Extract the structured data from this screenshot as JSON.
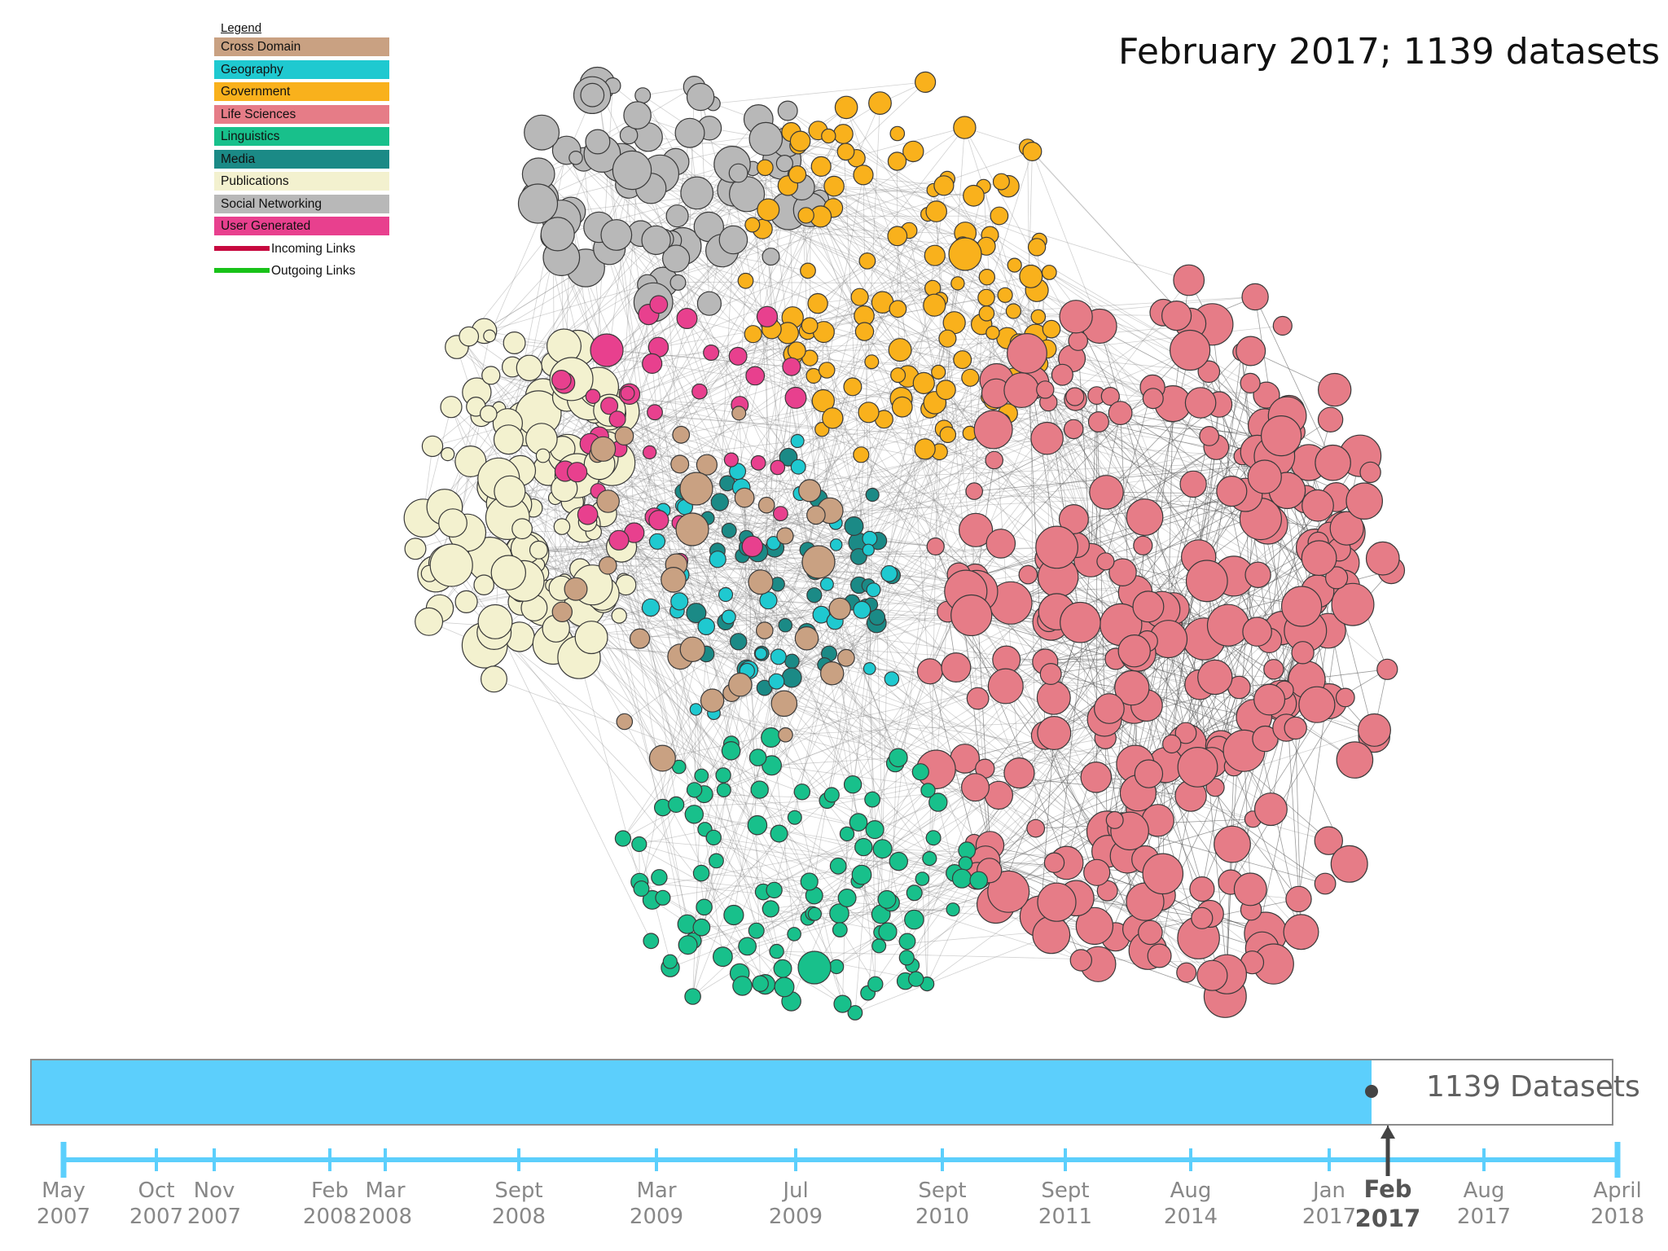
{
  "title": "February 2017; 1139 datasets",
  "legend": {
    "title": "Legend",
    "categories": [
      {
        "name": "Cross Domain",
        "color": "#c9a182"
      },
      {
        "name": "Geography",
        "color": "#1fc9d0"
      },
      {
        "name": "Government",
        "color": "#f9b11c"
      },
      {
        "name": "Life Sciences",
        "color": "#e67c87"
      },
      {
        "name": "Linguistics",
        "color": "#18c08b"
      },
      {
        "name": "Media",
        "color": "#1b8a86"
      },
      {
        "name": "Publications",
        "color": "#f3f1cf"
      },
      {
        "name": "Social Networking",
        "color": "#b8b8b8"
      },
      {
        "name": "User Generated",
        "color": "#e8408e"
      }
    ],
    "links": [
      {
        "name": "Incoming Links",
        "color": "#c7093f"
      },
      {
        "name": "Outgoing Links",
        "color": "#19c219"
      }
    ]
  },
  "progress": {
    "fraction": 0.848,
    "label": "1139 Datasets",
    "fill_color": "#5ccffc"
  },
  "timeline": {
    "color": "#5ccffc",
    "current_index": 12,
    "ticks": [
      {
        "month": "May",
        "year": "2007"
      },
      {
        "month": "Oct",
        "year": "2007"
      },
      {
        "month": "Nov",
        "year": "2007"
      },
      {
        "month": "Feb",
        "year": "2008"
      },
      {
        "month": "Mar",
        "year": "2008"
      },
      {
        "month": "Sept",
        "year": "2008"
      },
      {
        "month": "Mar",
        "year": "2009"
      },
      {
        "month": "Jul",
        "year": "2009"
      },
      {
        "month": "Sept",
        "year": "2010"
      },
      {
        "month": "Sept",
        "year": "2011"
      },
      {
        "month": "Aug",
        "year": "2014"
      },
      {
        "month": "Jan",
        "year": "2017"
      },
      {
        "month": "Feb",
        "year": "2017"
      },
      {
        "month": "Aug",
        "year": "2017"
      },
      {
        "month": "April",
        "year": "2018"
      }
    ]
  }
}
